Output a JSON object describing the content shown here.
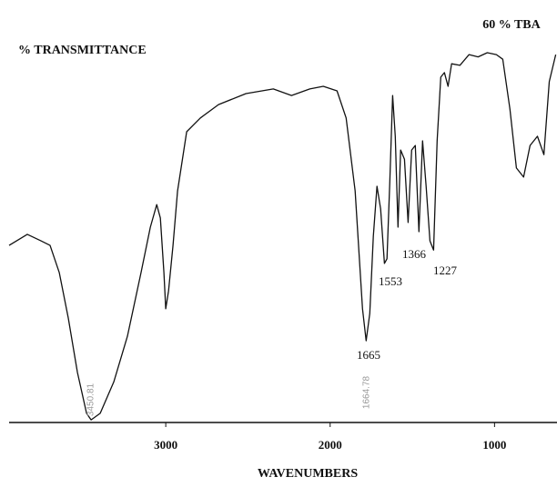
{
  "chart_data": {
    "type": "line",
    "title": "60 % TBA",
    "y_label": "% TRANSMITTANCE",
    "x_label": "WAVENUMBERS",
    "xlim": [
      3953,
      620
    ],
    "xticks": [
      3000,
      2000,
      1000
    ],
    "ylim": [
      0,
      100
    ],
    "color": "#111111",
    "annotations": [
      "1665",
      "1553",
      "1366",
      "1227",
      "3450.81",
      "1664.78"
    ],
    "series": [
      {
        "name": "60 % TBA",
        "x": [
          3953,
          3842,
          3759,
          3704,
          3648,
          3593,
          3537,
          3482,
          3454,
          3399,
          3316,
          3233,
          3150,
          3094,
          3055,
          3033,
          3011,
          3000,
          2983,
          2956,
          2928,
          2873,
          2789,
          2679,
          2512,
          2346,
          2235,
          2124,
          2042,
          1958,
          1903,
          1848,
          1803,
          1781,
          1759,
          1737,
          1715,
          1693,
          1670,
          1654,
          1637,
          1620,
          1604,
          1587,
          1571,
          1548,
          1526,
          1504,
          1482,
          1460,
          1438,
          1416,
          1393,
          1371,
          1349,
          1327,
          1305,
          1283,
          1261,
          1211,
          1155,
          1100,
          1044,
          989,
          950,
          906,
          867,
          823,
          784,
          739,
          700,
          667,
          628
        ],
        "values": [
          46.4,
          49.3,
          47.6,
          46.4,
          39.3,
          27.4,
          13.1,
          2.4,
          0.7,
          2.4,
          10.7,
          22.6,
          39.3,
          51.2,
          57.1,
          53.6,
          39.3,
          29.8,
          34.5,
          46.4,
          60.7,
          76.2,
          79.8,
          83.3,
          86.2,
          87.4,
          85.7,
          87.4,
          88.1,
          86.9,
          79.8,
          60.7,
          29.8,
          21.4,
          28.6,
          48.8,
          61.9,
          56.0,
          41.7,
          42.9,
          63.1,
          85.7,
          75.0,
          51.2,
          71.4,
          69.0,
          52.4,
          71.4,
          72.6,
          50.0,
          73.8,
          61.9,
          47.6,
          45.2,
          73.8,
          90.5,
          91.7,
          88.1,
          94.0,
          93.6,
          96.4,
          95.8,
          96.9,
          96.4,
          95.2,
          82.1,
          66.7,
          64.3,
          72.6,
          75.0,
          70.2,
          89.3,
          96.4
        ]
      }
    ]
  }
}
